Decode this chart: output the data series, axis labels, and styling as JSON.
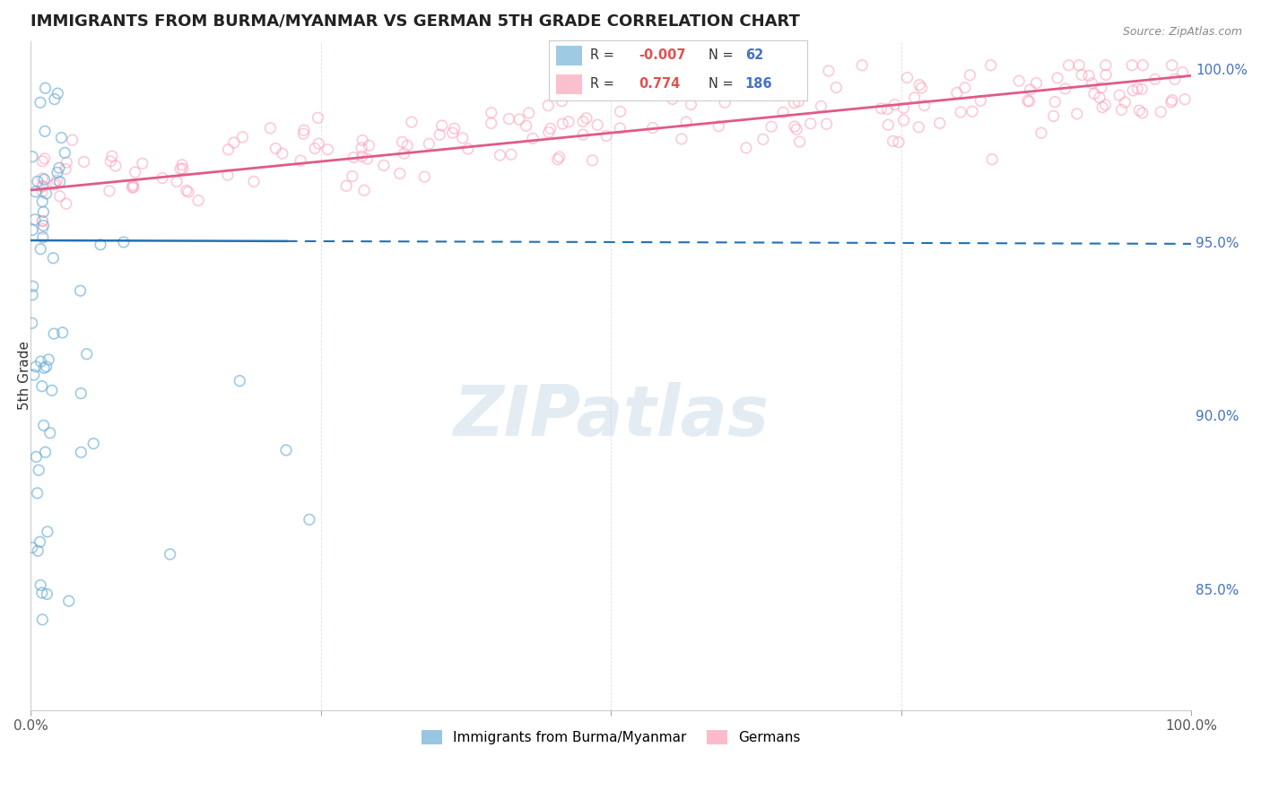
{
  "title": "IMMIGRANTS FROM BURMA/MYANMAR VS GERMAN 5TH GRADE CORRELATION CHART",
  "source_text": "Source: ZipAtlas.com",
  "ylabel": "5th Grade",
  "x_min": 0.0,
  "x_max": 1.0,
  "y_min": 0.815,
  "y_max": 1.008,
  "right_yticks": [
    0.85,
    0.9,
    0.95,
    1.0
  ],
  "right_yticklabels": [
    "85.0%",
    "90.0%",
    "95.0%",
    "100.0%"
  ],
  "blue_R": -0.007,
  "blue_N": 62,
  "pink_R": 0.774,
  "pink_N": 186,
  "blue_color": "#6baed6",
  "pink_color": "#fa9fb5",
  "blue_line_color": "#2171b5",
  "pink_line_color": "#e05a8a",
  "legend_R_blue": "-0.007",
  "legend_N_blue": "62",
  "legend_R_pink": "0.774",
  "legend_N_pink": "186",
  "watermark_text": "ZIPatlas",
  "background_color": "#ffffff",
  "grid_color": "#d0d8e8"
}
